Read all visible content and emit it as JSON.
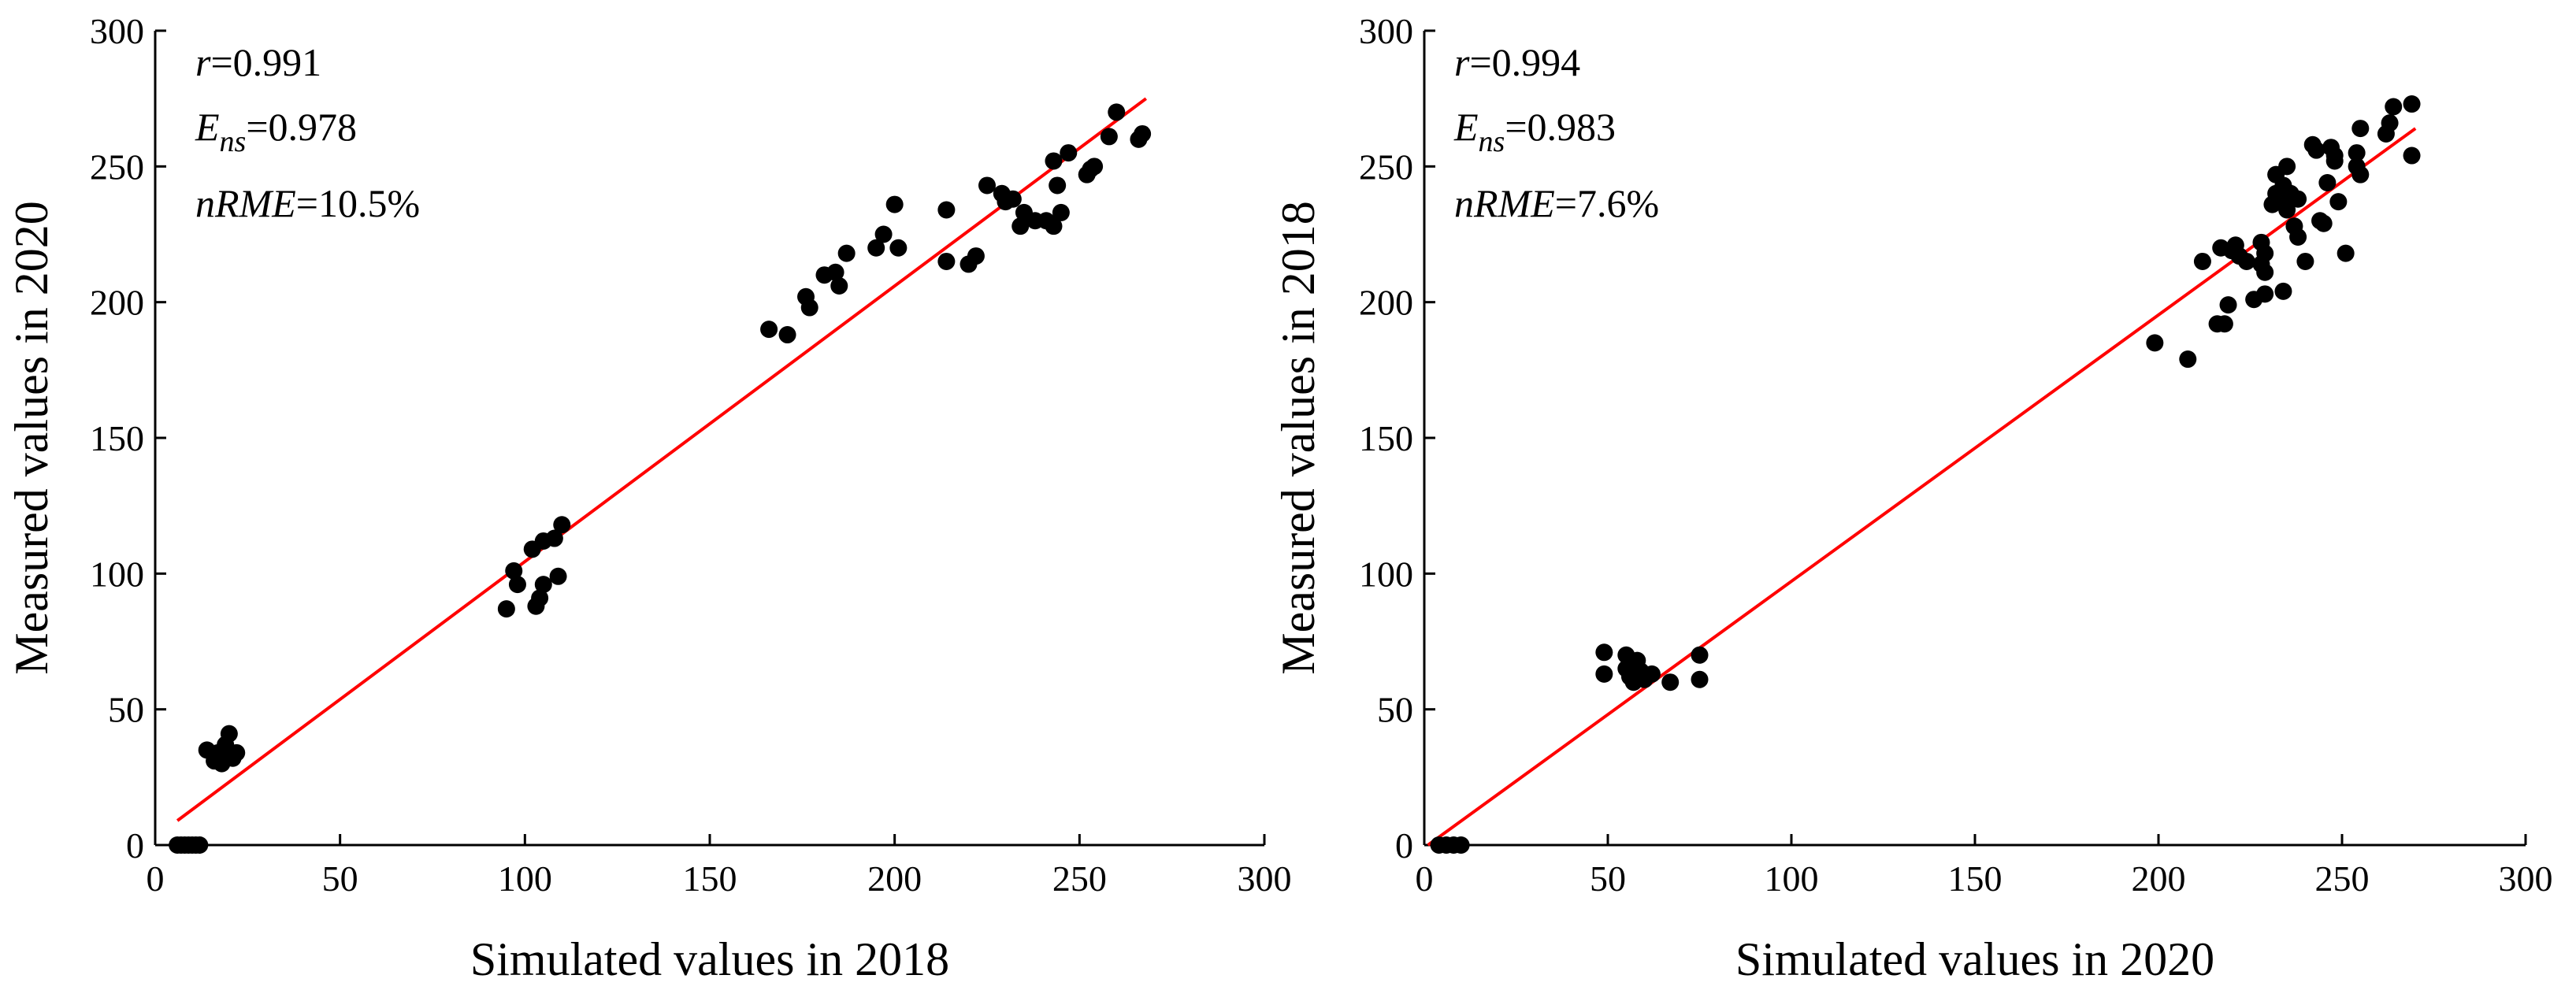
{
  "chart_data": [
    {
      "type": "scatter",
      "xlabel": "Simulated values in 2018",
      "ylabel": "Measured values in 2020",
      "xlim": [
        0,
        300
      ],
      "ylim": [
        0,
        300
      ],
      "xticks": [
        "0",
        "50",
        "100",
        "150",
        "200",
        "250",
        "300"
      ],
      "yticks": [
        "0",
        "50",
        "100",
        "150",
        "200",
        "250",
        "300"
      ],
      "grid": false,
      "stats": {
        "r": "0.991",
        "ens": "0.978",
        "nrme": "10.5%"
      },
      "fit_line": {
        "x": [
          6,
          268
        ],
        "y": [
          9,
          275
        ],
        "color": "#ff0000"
      },
      "point_color": "#000000",
      "points": [
        [
          6,
          0
        ],
        [
          7,
          0
        ],
        [
          8,
          0
        ],
        [
          9,
          0
        ],
        [
          10,
          0
        ],
        [
          11,
          0
        ],
        [
          12,
          0
        ],
        [
          14,
          35
        ],
        [
          16,
          31
        ],
        [
          17,
          34
        ],
        [
          18,
          30
        ],
        [
          19,
          37
        ],
        [
          20,
          33
        ],
        [
          20,
          41
        ],
        [
          21,
          32
        ],
        [
          22,
          34
        ],
        [
          95,
          87
        ],
        [
          97,
          101
        ],
        [
          98,
          96
        ],
        [
          102,
          109
        ],
        [
          103,
          88
        ],
        [
          104,
          91
        ],
        [
          105,
          96
        ],
        [
          105,
          112
        ],
        [
          108,
          113
        ],
        [
          109,
          99
        ],
        [
          110,
          118
        ],
        [
          166,
          190
        ],
        [
          171,
          188
        ],
        [
          176,
          202
        ],
        [
          177,
          198
        ],
        [
          181,
          210
        ],
        [
          184,
          211
        ],
        [
          185,
          206
        ],
        [
          187,
          218
        ],
        [
          195,
          220
        ],
        [
          197,
          225
        ],
        [
          200,
          236
        ],
        [
          201,
          220
        ],
        [
          214,
          234
        ],
        [
          214,
          215
        ],
        [
          220,
          214
        ],
        [
          222,
          217
        ],
        [
          225,
          243
        ],
        [
          229,
          240
        ],
        [
          230,
          237
        ],
        [
          232,
          238
        ],
        [
          234,
          228
        ],
        [
          235,
          233
        ],
        [
          238,
          230
        ],
        [
          241,
          230
        ],
        [
          243,
          228
        ],
        [
          243,
          252
        ],
        [
          244,
          243
        ],
        [
          245,
          233
        ],
        [
          247,
          255
        ],
        [
          252,
          247
        ],
        [
          253,
          249
        ],
        [
          254,
          250
        ],
        [
          258,
          261
        ],
        [
          260,
          270
        ],
        [
          266,
          260
        ],
        [
          267,
          262
        ]
      ]
    },
    {
      "type": "scatter",
      "xlabel": "Simulated values in 2020",
      "ylabel": "Measured values in 2018",
      "xlim": [
        0,
        300
      ],
      "ylim": [
        0,
        300
      ],
      "xticks": [
        "0",
        "50",
        "100",
        "150",
        "200",
        "250",
        "300"
      ],
      "yticks": [
        "0",
        "50",
        "100",
        "150",
        "200",
        "250",
        "300"
      ],
      "grid": false,
      "stats": {
        "r": "0.994",
        "ens": "0.983",
        "nrme": "7.6%"
      },
      "fit_line": {
        "x": [
          1,
          270
        ],
        "y": [
          0,
          264
        ],
        "color": "#ff0000"
      },
      "point_color": "#000000",
      "points": [
        [
          4,
          0
        ],
        [
          6,
          0
        ],
        [
          8,
          0
        ],
        [
          10,
          0
        ],
        [
          49,
          71
        ],
        [
          49,
          63
        ],
        [
          55,
          70
        ],
        [
          55,
          65
        ],
        [
          56,
          62
        ],
        [
          57,
          60
        ],
        [
          58,
          68
        ],
        [
          59,
          64
        ],
        [
          60,
          61
        ],
        [
          62,
          63
        ],
        [
          67,
          60
        ],
        [
          75,
          70
        ],
        [
          75,
          61
        ],
        [
          199,
          185
        ],
        [
          208,
          179
        ],
        [
          212,
          215
        ],
        [
          216,
          192
        ],
        [
          217,
          220
        ],
        [
          218,
          192
        ],
        [
          219,
          199
        ],
        [
          220,
          219
        ],
        [
          221,
          221
        ],
        [
          222,
          217
        ],
        [
          224,
          215
        ],
        [
          226,
          201
        ],
        [
          228,
          222
        ],
        [
          228,
          214
        ],
        [
          229,
          218
        ],
        [
          229,
          211
        ],
        [
          229,
          203
        ],
        [
          231,
          236
        ],
        [
          232,
          247
        ],
        [
          232,
          240
        ],
        [
          233,
          237
        ],
        [
          234,
          204
        ],
        [
          234,
          243
        ],
        [
          235,
          250
        ],
        [
          235,
          234
        ],
        [
          236,
          240
        ],
        [
          237,
          228
        ],
        [
          238,
          238
        ],
        [
          238,
          224
        ],
        [
          240,
          215
        ],
        [
          242,
          258
        ],
        [
          243,
          256
        ],
        [
          244,
          230
        ],
        [
          245,
          229
        ],
        [
          246,
          244
        ],
        [
          247,
          257
        ],
        [
          248,
          252
        ],
        [
          248,
          254
        ],
        [
          249,
          237
        ],
        [
          251,
          218
        ],
        [
          254,
          250
        ],
        [
          254,
          255
        ],
        [
          255,
          247
        ],
        [
          255,
          264
        ],
        [
          262,
          262
        ],
        [
          263,
          266
        ],
        [
          264,
          272
        ],
        [
          269,
          273
        ],
        [
          269,
          254
        ]
      ]
    }
  ]
}
